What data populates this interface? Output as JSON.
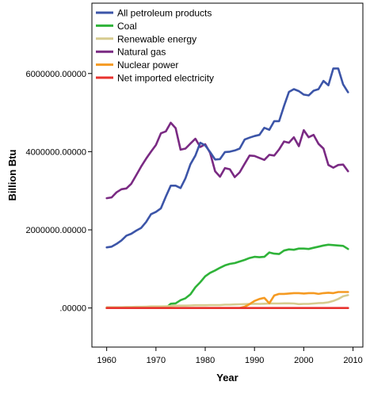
{
  "chart_data": {
    "type": "line",
    "xlabel": "Year",
    "ylabel": "Billion Btu",
    "xlim": [
      1957,
      2012
    ],
    "ylim": [
      -1000000,
      7800000
    ],
    "x_ticks": [
      1960,
      1970,
      1980,
      1990,
      2000,
      2010
    ],
    "y_ticks": [
      {
        "value": 0,
        "label": ".00000"
      },
      {
        "value": 2000000,
        "label": "2000000.00000"
      },
      {
        "value": 4000000,
        "label": "4000000.00000"
      },
      {
        "value": 6000000,
        "label": "6000000.00000"
      }
    ],
    "legend_position": "top-left",
    "grid": false,
    "x": [
      1960,
      1961,
      1962,
      1963,
      1964,
      1965,
      1966,
      1967,
      1968,
      1969,
      1970,
      1971,
      1972,
      1973,
      1974,
      1975,
      1976,
      1977,
      1978,
      1979,
      1980,
      1981,
      1982,
      1983,
      1984,
      1985,
      1986,
      1987,
      1988,
      1989,
      1990,
      1991,
      1992,
      1993,
      1994,
      1995,
      1996,
      1997,
      1998,
      1999,
      2000,
      2001,
      2002,
      2003,
      2004,
      2005,
      2006,
      2007,
      2008,
      2009
    ],
    "series": [
      {
        "name": "All petroleum products",
        "color": "#3c55a8",
        "values": [
          1550000,
          1570000,
          1640000,
          1730000,
          1850000,
          1900000,
          1980000,
          2050000,
          2200000,
          2400000,
          2460000,
          2550000,
          2850000,
          3130000,
          3130000,
          3070000,
          3320000,
          3680000,
          3900000,
          4230000,
          4160000,
          3990000,
          3800000,
          3810000,
          3990000,
          4000000,
          4030000,
          4080000,
          4310000,
          4360000,
          4400000,
          4430000,
          4610000,
          4560000,
          4780000,
          4780000,
          5170000,
          5530000,
          5600000,
          5550000,
          5460000,
          5440000,
          5560000,
          5600000,
          5810000,
          5700000,
          6130000,
          6130000,
          5720000,
          5520000
        ]
      },
      {
        "name": "Coal",
        "color": "#2fb339",
        "values": [
          0,
          0,
          0,
          0,
          0,
          0,
          0,
          0,
          0,
          0,
          0,
          0,
          0,
          110000,
          120000,
          200000,
          250000,
          350000,
          530000,
          660000,
          810000,
          900000,
          960000,
          1030000,
          1090000,
          1130000,
          1150000,
          1190000,
          1230000,
          1280000,
          1310000,
          1300000,
          1310000,
          1420000,
          1390000,
          1380000,
          1470000,
          1500000,
          1490000,
          1520000,
          1520000,
          1510000,
          1540000,
          1570000,
          1600000,
          1620000,
          1610000,
          1600000,
          1590000,
          1510000
        ]
      },
      {
        "name": "Renewable energy",
        "color": "#d6cb8f",
        "values": [
          20000,
          20000,
          20000,
          20000,
          25000,
          25000,
          30000,
          30000,
          35000,
          40000,
          40000,
          40000,
          45000,
          50000,
          60000,
          60000,
          60000,
          65000,
          70000,
          70000,
          70000,
          75000,
          75000,
          75000,
          85000,
          85000,
          90000,
          95000,
          100000,
          105000,
          110000,
          105000,
          110000,
          115000,
          115000,
          115000,
          120000,
          120000,
          115000,
          100000,
          105000,
          105000,
          115000,
          125000,
          130000,
          145000,
          180000,
          230000,
          300000,
          330000
        ]
      },
      {
        "name": "Natural gas",
        "color": "#7a2a83",
        "values": [
          2810000,
          2830000,
          2960000,
          3040000,
          3060000,
          3180000,
          3400000,
          3620000,
          3820000,
          4000000,
          4170000,
          4470000,
          4520000,
          4740000,
          4600000,
          4050000,
          4080000,
          4210000,
          4330000,
          4120000,
          4190000,
          3970000,
          3500000,
          3360000,
          3580000,
          3550000,
          3350000,
          3470000,
          3690000,
          3900000,
          3890000,
          3840000,
          3790000,
          3920000,
          3900000,
          4060000,
          4260000,
          4230000,
          4370000,
          4140000,
          4550000,
          4370000,
          4430000,
          4200000,
          4080000,
          3660000,
          3590000,
          3660000,
          3670000,
          3500000
        ]
      },
      {
        "name": "Nuclear power",
        "color": "#f59a22",
        "values": [
          0,
          0,
          0,
          0,
          0,
          0,
          0,
          0,
          0,
          0,
          0,
          0,
          0,
          0,
          0,
          0,
          0,
          0,
          0,
          0,
          0,
          0,
          0,
          0,
          0,
          0,
          0,
          0,
          30000,
          100000,
          180000,
          230000,
          260000,
          120000,
          320000,
          360000,
          360000,
          370000,
          380000,
          380000,
          370000,
          380000,
          380000,
          360000,
          380000,
          390000,
          380000,
          410000,
          410000,
          410000
        ]
      },
      {
        "name": "Net imported electricity",
        "color": "#e8322e",
        "values": [
          0,
          0,
          0,
          0,
          0,
          0,
          0,
          0,
          0,
          0,
          0,
          0,
          0,
          0,
          0,
          0,
          0,
          0,
          0,
          0,
          0,
          0,
          0,
          0,
          0,
          0,
          0,
          0,
          0,
          0,
          0,
          0,
          0,
          0,
          0,
          0,
          0,
          0,
          0,
          0,
          0,
          0,
          0,
          0,
          0,
          0,
          0,
          0,
          0,
          0
        ]
      }
    ]
  }
}
